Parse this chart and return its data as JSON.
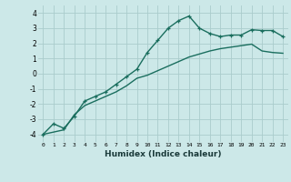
{
  "xlabel": "Humidex (Indice chaleur)",
  "bg_color": "#cce8e8",
  "grid_color": "#aacccc",
  "line_color": "#1a6e5e",
  "xlim": [
    -0.5,
    23.5
  ],
  "ylim": [
    -4.5,
    4.5
  ],
  "xticks": [
    0,
    1,
    2,
    3,
    4,
    5,
    6,
    7,
    8,
    9,
    10,
    11,
    12,
    13,
    14,
    15,
    16,
    17,
    18,
    19,
    20,
    21,
    22,
    23
  ],
  "yticks": [
    -4,
    -3,
    -2,
    -1,
    0,
    1,
    2,
    3,
    4
  ],
  "curve1_x": [
    0,
    1,
    2,
    3,
    4,
    5,
    6,
    7,
    8,
    9,
    10,
    11,
    12,
    13,
    14,
    15,
    16,
    17,
    18,
    19,
    20,
    21,
    22,
    23
  ],
  "curve1_y": [
    -4.0,
    -3.3,
    -3.6,
    -2.8,
    -1.8,
    -1.5,
    -1.2,
    -0.7,
    -0.2,
    0.3,
    1.4,
    2.2,
    3.0,
    3.5,
    3.8,
    3.0,
    2.65,
    2.45,
    2.55,
    2.55,
    2.9,
    2.85,
    2.85,
    2.45
  ],
  "curve2_x": [
    0,
    2,
    3,
    4,
    5,
    6,
    7,
    8,
    9,
    10,
    11,
    12,
    13,
    14,
    15,
    16,
    17,
    18,
    19,
    20,
    21,
    22,
    23
  ],
  "curve2_y": [
    -4.0,
    -3.7,
    -2.7,
    -2.1,
    -1.8,
    -1.5,
    -1.2,
    -0.8,
    -0.3,
    -0.1,
    0.2,
    0.5,
    0.8,
    1.1,
    1.3,
    1.5,
    1.65,
    1.75,
    1.85,
    1.95,
    1.5,
    1.4,
    1.35
  ]
}
